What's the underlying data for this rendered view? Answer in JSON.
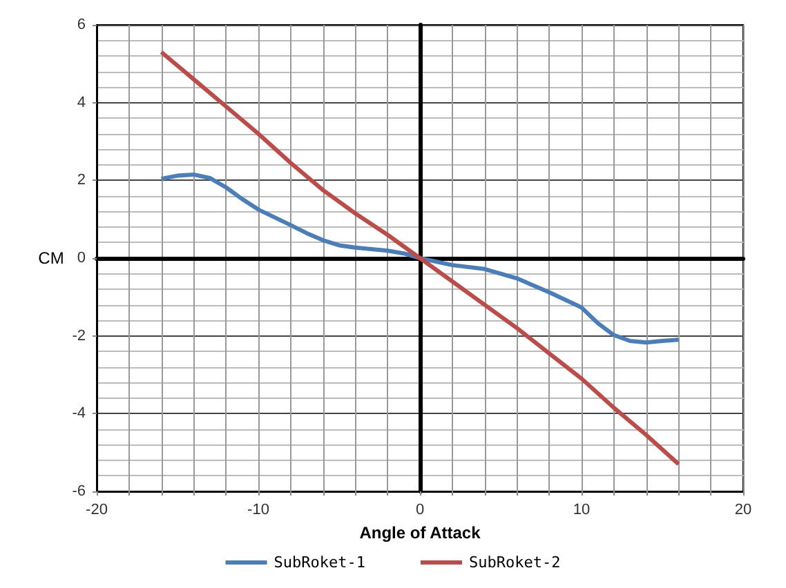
{
  "chart_data": {
    "type": "line",
    "xlabel": "Angle of Attack",
    "ylabel": "CM",
    "legend": "bottom",
    "grid": true,
    "marker": "none",
    "line_style": "solid",
    "xlim": [
      -20,
      20
    ],
    "ylim": [
      -6,
      6
    ],
    "xticks": [
      -20,
      {
        "value": -18,
        "label": null
      },
      {
        "value": -16,
        "label": null
      },
      {
        "value": -14,
        "label": null
      },
      {
        "value": -12,
        "label": null
      },
      -10,
      {
        "value": -8,
        "label": null
      },
      {
        "value": -6,
        "label": null
      },
      {
        "value": -4,
        "label": null
      },
      {
        "value": -2,
        "label": null
      },
      0,
      {
        "value": 2,
        "label": null
      },
      {
        "value": 4,
        "label": null
      },
      {
        "value": 6,
        "label": null
      },
      {
        "value": 8,
        "label": null
      },
      10,
      {
        "value": 12,
        "label": null
      },
      {
        "value": 14,
        "label": null
      },
      {
        "value": 16,
        "label": null
      },
      {
        "value": 18,
        "label": null
      },
      20
    ],
    "yticks": [
      -6,
      -4,
      -2,
      0,
      2,
      4,
      6
    ],
    "series": [
      {
        "name": "SubRoket-1",
        "color": "#4a7ebb",
        "x": [
          -16,
          -15,
          -14,
          -13,
          -12,
          -11,
          -10,
          -9,
          -8,
          -7,
          -6,
          -5,
          -4,
          -3,
          -2,
          -1,
          0,
          2,
          4,
          6,
          8,
          10,
          11,
          12,
          13,
          14,
          15,
          16
        ],
        "values": [
          2.04,
          2.12,
          2.15,
          2.06,
          1.82,
          1.52,
          1.25,
          1.05,
          0.85,
          0.64,
          0.46,
          0.33,
          0.27,
          0.23,
          0.19,
          0.12,
          0,
          -0.18,
          -0.28,
          -0.52,
          -0.88,
          -1.27,
          -1.67,
          -1.98,
          -2.13,
          -2.17,
          -2.13,
          -2.1
        ]
      },
      {
        "name": "SubRoket-2",
        "color": "#be4b48",
        "x": [
          -16,
          -14,
          -12,
          -10,
          -8,
          -6,
          -4,
          -2,
          0,
          2,
          4,
          6,
          8,
          10,
          12,
          14,
          16
        ],
        "values": [
          5.3,
          4.6,
          3.9,
          3.2,
          2.45,
          1.75,
          1.15,
          0.6,
          0,
          -0.6,
          -1.2,
          -1.8,
          -2.45,
          -3.1,
          -3.85,
          -4.55,
          -5.3
        ]
      }
    ]
  }
}
